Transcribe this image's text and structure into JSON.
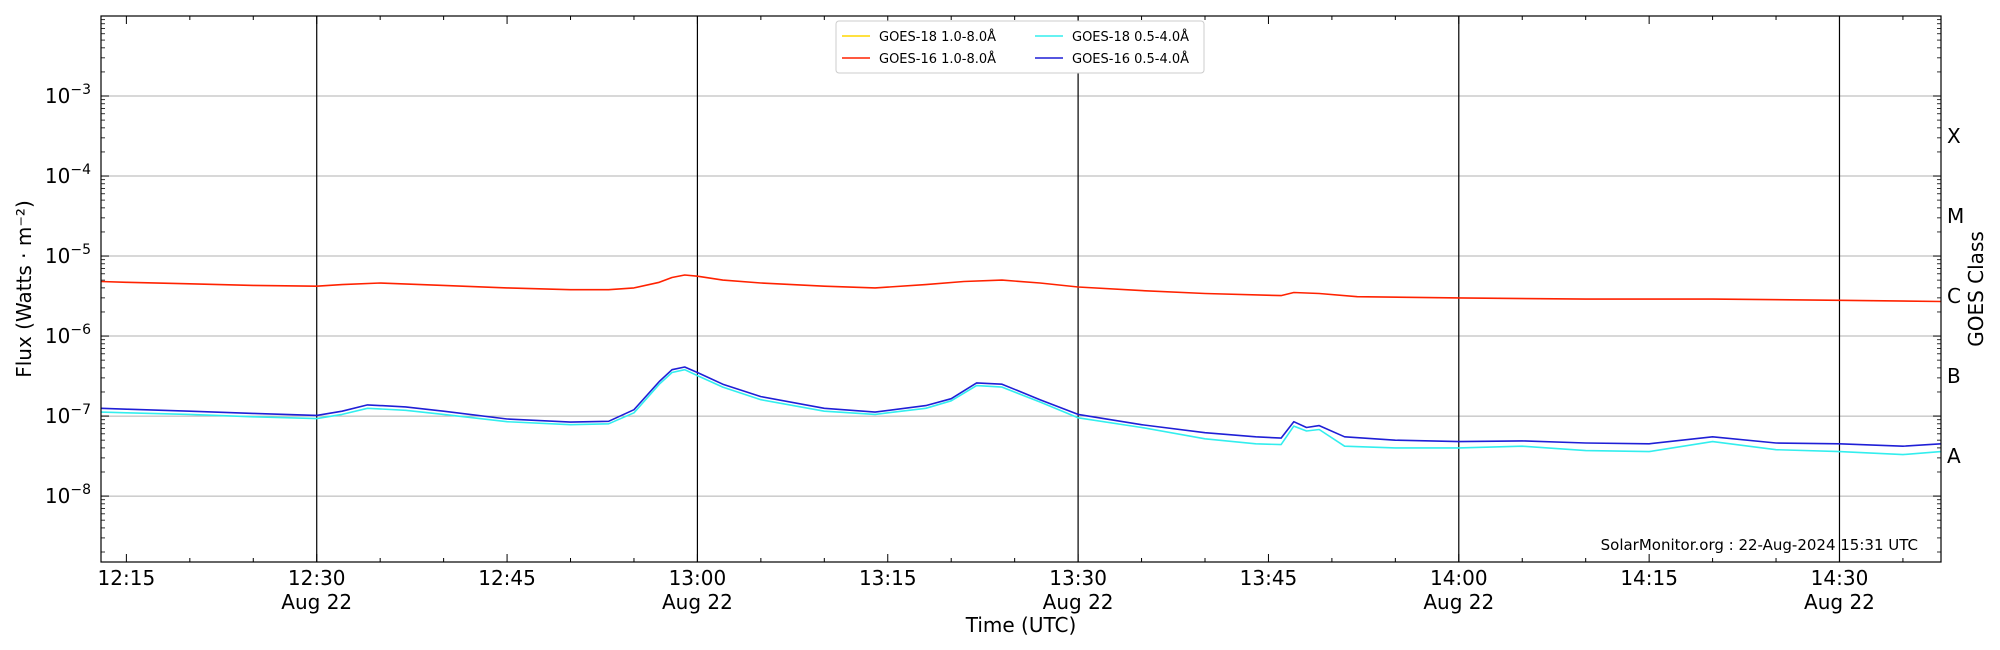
{
  "chart_data": {
    "type": "line",
    "xlabel": "Time (UTC)",
    "ylabel": "Flux (Watts · m⁻²)",
    "ylabel_right": "GOES Class",
    "y_scale": "log",
    "ylim": [
      1.5e-09,
      0.01
    ],
    "xlim": [
      "2024-08-22 12:13",
      "2024-08-22 14:38"
    ],
    "grid": true,
    "legend_position": "top-center",
    "watermark": "SolarMonitor.org : 22-Aug-2024 15:31 UTC",
    "x_ticks": [
      {
        "time": "2024-08-22 12:15",
        "label": "12:15",
        "sublabel": ""
      },
      {
        "time": "2024-08-22 12:30",
        "label": "12:30",
        "sublabel": "Aug 22"
      },
      {
        "time": "2024-08-22 12:45",
        "label": "12:45",
        "sublabel": ""
      },
      {
        "time": "2024-08-22 13:00",
        "label": "13:00",
        "sublabel": "Aug 22"
      },
      {
        "time": "2024-08-22 13:15",
        "label": "13:15",
        "sublabel": ""
      },
      {
        "time": "2024-08-22 13:30",
        "label": "13:30",
        "sublabel": "Aug 22"
      },
      {
        "time": "2024-08-22 13:45",
        "label": "13:45",
        "sublabel": ""
      },
      {
        "time": "2024-08-22 14:00",
        "label": "14:00",
        "sublabel": "Aug 22"
      },
      {
        "time": "2024-08-22 14:15",
        "label": "14:15",
        "sublabel": ""
      },
      {
        "time": "2024-08-22 14:30",
        "label": "14:30",
        "sublabel": "Aug 22"
      }
    ],
    "y_ticks": [
      {
        "value": 1e-08,
        "base": "10",
        "exp": "−8"
      },
      {
        "value": 1e-07,
        "base": "10",
        "exp": "−7"
      },
      {
        "value": 1e-06,
        "base": "10",
        "exp": "−6"
      },
      {
        "value": 1e-05,
        "base": "10",
        "exp": "−5"
      },
      {
        "value": 0.0001,
        "base": "10",
        "exp": "−4"
      },
      {
        "value": 0.001,
        "base": "10",
        "exp": "−3"
      }
    ],
    "vertical_lines": [
      "2024-08-22 12:30",
      "2024-08-22 13:00",
      "2024-08-22 13:30",
      "2024-08-22 14:00",
      "2024-08-22 14:30"
    ],
    "goes_classes": [
      {
        "label": "A",
        "value": 1e-08
      },
      {
        "label": "B",
        "value": 1e-07
      },
      {
        "label": "C",
        "value": 1e-06
      },
      {
        "label": "M",
        "value": 1e-05
      },
      {
        "label": "X",
        "value": 0.0001
      }
    ],
    "series": [
      {
        "name": "GOES-18 1.0-8.0Å",
        "color": "#ffd700",
        "points": []
      },
      {
        "name": "GOES-16 1.0-8.0Å",
        "color": "#ff2200",
        "points": [
          [
            "2024-08-22 12:13",
            4.8e-06
          ],
          [
            "2024-08-22 12:15",
            4.7e-06
          ],
          [
            "2024-08-22 12:20",
            4.5e-06
          ],
          [
            "2024-08-22 12:25",
            4.3e-06
          ],
          [
            "2024-08-22 12:30",
            4.2e-06
          ],
          [
            "2024-08-22 12:32",
            4.4e-06
          ],
          [
            "2024-08-22 12:35",
            4.6e-06
          ],
          [
            "2024-08-22 12:40",
            4.3e-06
          ],
          [
            "2024-08-22 12:45",
            4e-06
          ],
          [
            "2024-08-22 12:50",
            3.8e-06
          ],
          [
            "2024-08-22 12:53",
            3.8e-06
          ],
          [
            "2024-08-22 12:55",
            4e-06
          ],
          [
            "2024-08-22 12:57",
            4.7e-06
          ],
          [
            "2024-08-22 12:58",
            5.4e-06
          ],
          [
            "2024-08-22 12:59",
            5.8e-06
          ],
          [
            "2024-08-22 13:00",
            5.6e-06
          ],
          [
            "2024-08-22 13:02",
            5e-06
          ],
          [
            "2024-08-22 13:05",
            4.6e-06
          ],
          [
            "2024-08-22 13:10",
            4.2e-06
          ],
          [
            "2024-08-22 13:14",
            4e-06
          ],
          [
            "2024-08-22 13:18",
            4.4e-06
          ],
          [
            "2024-08-22 13:21",
            4.8e-06
          ],
          [
            "2024-08-22 13:24",
            5e-06
          ],
          [
            "2024-08-22 13:27",
            4.6e-06
          ],
          [
            "2024-08-22 13:30",
            4.1e-06
          ],
          [
            "2024-08-22 13:35",
            3.7e-06
          ],
          [
            "2024-08-22 13:40",
            3.4e-06
          ],
          [
            "2024-08-22 13:46",
            3.2e-06
          ],
          [
            "2024-08-22 13:47",
            3.5e-06
          ],
          [
            "2024-08-22 13:49",
            3.4e-06
          ],
          [
            "2024-08-22 13:52",
            3.1e-06
          ],
          [
            "2024-08-22 14:00",
            3e-06
          ],
          [
            "2024-08-22 14:10",
            2.9e-06
          ],
          [
            "2024-08-22 14:20",
            2.9e-06
          ],
          [
            "2024-08-22 14:30",
            2.8e-06
          ],
          [
            "2024-08-22 14:38",
            2.7e-06
          ]
        ]
      },
      {
        "name": "GOES-18 0.5-4.0Å",
        "color": "#33eeee",
        "points": [
          [
            "2024-08-22 12:13",
            1.12e-07
          ],
          [
            "2024-08-22 12:15",
            1.1e-07
          ],
          [
            "2024-08-22 12:20",
            1.05e-07
          ],
          [
            "2024-08-22 12:25",
            9.8e-08
          ],
          [
            "2024-08-22 12:30",
            9.3e-08
          ],
          [
            "2024-08-22 12:32",
            1.05e-07
          ],
          [
            "2024-08-22 12:34",
            1.25e-07
          ],
          [
            "2024-08-22 12:37",
            1.18e-07
          ],
          [
            "2024-08-22 12:40",
            1.05e-07
          ],
          [
            "2024-08-22 12:45",
            8.5e-08
          ],
          [
            "2024-08-22 12:50",
            7.8e-08
          ],
          [
            "2024-08-22 12:53",
            8e-08
          ],
          [
            "2024-08-22 12:55",
            1.1e-07
          ],
          [
            "2024-08-22 12:57",
            2.5e-07
          ],
          [
            "2024-08-22 12:58",
            3.5e-07
          ],
          [
            "2024-08-22 12:59",
            3.8e-07
          ],
          [
            "2024-08-22 13:00",
            3.2e-07
          ],
          [
            "2024-08-22 13:02",
            2.3e-07
          ],
          [
            "2024-08-22 13:05",
            1.6e-07
          ],
          [
            "2024-08-22 13:10",
            1.15e-07
          ],
          [
            "2024-08-22 13:14",
            1.05e-07
          ],
          [
            "2024-08-22 13:18",
            1.25e-07
          ],
          [
            "2024-08-22 13:20",
            1.55e-07
          ],
          [
            "2024-08-22 13:22",
            2.4e-07
          ],
          [
            "2024-08-22 13:24",
            2.3e-07
          ],
          [
            "2024-08-22 13:27",
            1.5e-07
          ],
          [
            "2024-08-22 13:30",
            9.5e-08
          ],
          [
            "2024-08-22 13:35",
            7.2e-08
          ],
          [
            "2024-08-22 13:40",
            5.2e-08
          ],
          [
            "2024-08-22 13:44",
            4.5e-08
          ],
          [
            "2024-08-22 13:46",
            4.4e-08
          ],
          [
            "2024-08-22 13:47",
            7.5e-08
          ],
          [
            "2024-08-22 13:48",
            6.5e-08
          ],
          [
            "2024-08-22 13:49",
            6.8e-08
          ],
          [
            "2024-08-22 13:51",
            4.2e-08
          ],
          [
            "2024-08-22 13:55",
            4e-08
          ],
          [
            "2024-08-22 14:00",
            4e-08
          ],
          [
            "2024-08-22 14:05",
            4.2e-08
          ],
          [
            "2024-08-22 14:10",
            3.7e-08
          ],
          [
            "2024-08-22 14:15",
            3.6e-08
          ],
          [
            "2024-08-22 14:20",
            4.8e-08
          ],
          [
            "2024-08-22 14:25",
            3.8e-08
          ],
          [
            "2024-08-22 14:30",
            3.6e-08
          ],
          [
            "2024-08-22 14:35",
            3.3e-08
          ],
          [
            "2024-08-22 14:38",
            3.6e-08
          ]
        ]
      },
      {
        "name": "GOES-16 0.5-4.0Å",
        "color": "#1f1fd6",
        "points": [
          [
            "2024-08-22 12:13",
            1.25e-07
          ],
          [
            "2024-08-22 12:15",
            1.22e-07
          ],
          [
            "2024-08-22 12:20",
            1.15e-07
          ],
          [
            "2024-08-22 12:25",
            1.08e-07
          ],
          [
            "2024-08-22 12:30",
            1.02e-07
          ],
          [
            "2024-08-22 12:32",
            1.15e-07
          ],
          [
            "2024-08-22 12:34",
            1.38e-07
          ],
          [
            "2024-08-22 12:37",
            1.3e-07
          ],
          [
            "2024-08-22 12:40",
            1.15e-07
          ],
          [
            "2024-08-22 12:45",
            9.2e-08
          ],
          [
            "2024-08-22 12:50",
            8.4e-08
          ],
          [
            "2024-08-22 12:53",
            8.6e-08
          ],
          [
            "2024-08-22 12:55",
            1.2e-07
          ],
          [
            "2024-08-22 12:57",
            2.7e-07
          ],
          [
            "2024-08-22 12:58",
            3.8e-07
          ],
          [
            "2024-08-22 12:59",
            4.1e-07
          ],
          [
            "2024-08-22 13:00",
            3.5e-07
          ],
          [
            "2024-08-22 13:02",
            2.5e-07
          ],
          [
            "2024-08-22 13:05",
            1.75e-07
          ],
          [
            "2024-08-22 13:10",
            1.25e-07
          ],
          [
            "2024-08-22 13:14",
            1.12e-07
          ],
          [
            "2024-08-22 13:18",
            1.35e-07
          ],
          [
            "2024-08-22 13:20",
            1.65e-07
          ],
          [
            "2024-08-22 13:22",
            2.6e-07
          ],
          [
            "2024-08-22 13:24",
            2.5e-07
          ],
          [
            "2024-08-22 13:27",
            1.6e-07
          ],
          [
            "2024-08-22 13:30",
            1.05e-07
          ],
          [
            "2024-08-22 13:35",
            7.8e-08
          ],
          [
            "2024-08-22 13:40",
            6.2e-08
          ],
          [
            "2024-08-22 13:44",
            5.5e-08
          ],
          [
            "2024-08-22 13:46",
            5.3e-08
          ],
          [
            "2024-08-22 13:47",
            8.5e-08
          ],
          [
            "2024-08-22 13:48",
            7.2e-08
          ],
          [
            "2024-08-22 13:49",
            7.6e-08
          ],
          [
            "2024-08-22 13:51",
            5.5e-08
          ],
          [
            "2024-08-22 13:55",
            5e-08
          ],
          [
            "2024-08-22 14:00",
            4.8e-08
          ],
          [
            "2024-08-22 14:05",
            4.9e-08
          ],
          [
            "2024-08-22 14:10",
            4.6e-08
          ],
          [
            "2024-08-22 14:15",
            4.5e-08
          ],
          [
            "2024-08-22 14:20",
            5.5e-08
          ],
          [
            "2024-08-22 14:25",
            4.6e-08
          ],
          [
            "2024-08-22 14:30",
            4.5e-08
          ],
          [
            "2024-08-22 14:35",
            4.2e-08
          ],
          [
            "2024-08-22 14:38",
            4.5e-08
          ]
        ]
      }
    ]
  }
}
